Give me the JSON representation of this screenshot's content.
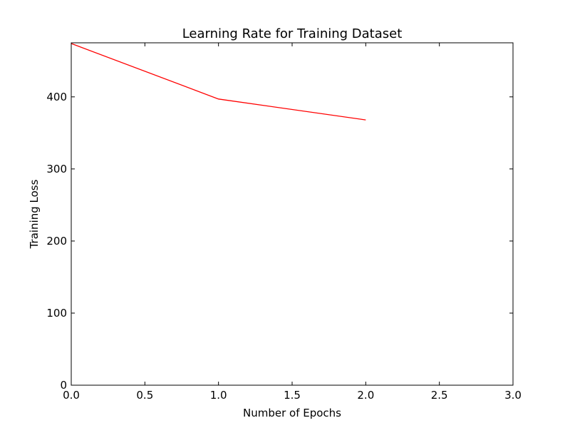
{
  "chart_data": {
    "type": "line",
    "title": "Learning Rate for Training Dataset",
    "xlabel": "Number of Epochs",
    "ylabel": "Training Loss",
    "xlim": [
      0.0,
      3.0
    ],
    "ylim": [
      0,
      475
    ],
    "xticks": [
      0.0,
      0.5,
      1.0,
      1.5,
      2.0,
      2.5,
      3.0
    ],
    "xtick_labels": [
      "0.0",
      "0.5",
      "1.0",
      "1.5",
      "2.0",
      "2.5",
      "3.0"
    ],
    "yticks": [
      0,
      100,
      200,
      300,
      400
    ],
    "ytick_labels": [
      "0",
      "100",
      "200",
      "300",
      "400"
    ],
    "grid": false,
    "series": [
      {
        "x": [
          0,
          1,
          2
        ],
        "y": [
          474,
          397,
          368
        ],
        "color": "#ff0000"
      }
    ]
  }
}
